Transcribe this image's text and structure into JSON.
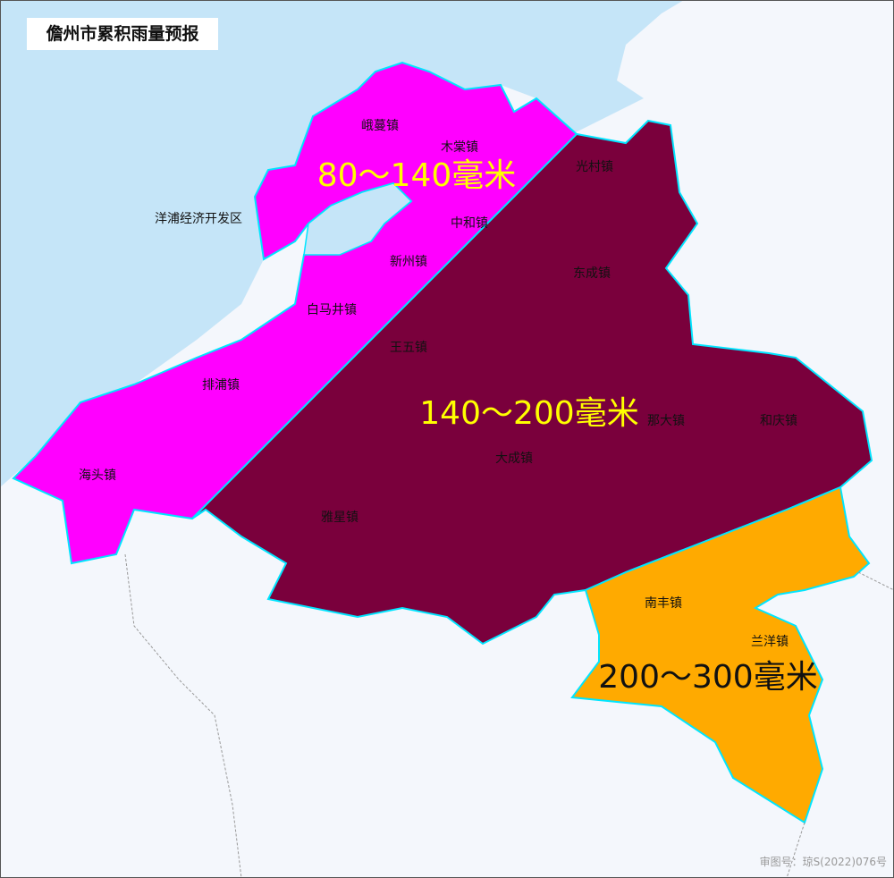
{
  "title": "儋州市累积雨量预报",
  "approval_number": "审图号：琼S(2022)076号",
  "colors": {
    "sea": "#c5e5f8",
    "land_outside": "#f4f7fc",
    "band_80_140": "#ff00ff",
    "band_140_200": "#7a003c",
    "band_200_300": "#ffaa00",
    "boundary": "#00e5ff",
    "band_label_yellow": "#ffff00"
  },
  "bands": [
    {
      "label": "80～140毫米",
      "color": "#ff00ff"
    },
    {
      "label": "140～200毫米",
      "color": "#7a003c"
    },
    {
      "label": "200～300毫米",
      "color": "#ffaa00"
    }
  ],
  "towns": [
    "峨蔓镇",
    "木棠镇",
    "光村镇",
    "洋浦经济开发区",
    "中和镇",
    "新州镇",
    "东成镇",
    "白马井镇",
    "王五镇",
    "排浦镇",
    "那大镇",
    "和庆镇",
    "大成镇",
    "海头镇",
    "雅星镇",
    "南丰镇",
    "兰洋镇"
  ]
}
